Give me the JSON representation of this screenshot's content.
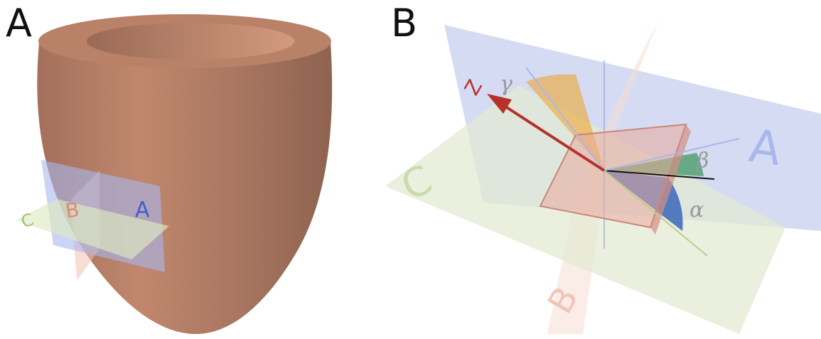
{
  "panels": {
    "a": {
      "letter": "A"
    },
    "b": {
      "letter": "B"
    }
  },
  "planes": {
    "a": {
      "label": "A",
      "color": "#7f94d8"
    },
    "b": {
      "label": "B",
      "color": "#f0b3a0"
    },
    "c": {
      "label": "C",
      "color": "#cfe0b0"
    }
  },
  "axes": {
    "z": {
      "label": "Z",
      "color": "#b5312a"
    }
  },
  "angles": {
    "alpha": {
      "label": "α",
      "color": "#2d5fb8"
    },
    "beta": {
      "label": "β",
      "color": "#3f9a60"
    },
    "gamma": {
      "label": "γ",
      "color": "#f0a020"
    }
  },
  "heart": {
    "color": "#b07860"
  }
}
